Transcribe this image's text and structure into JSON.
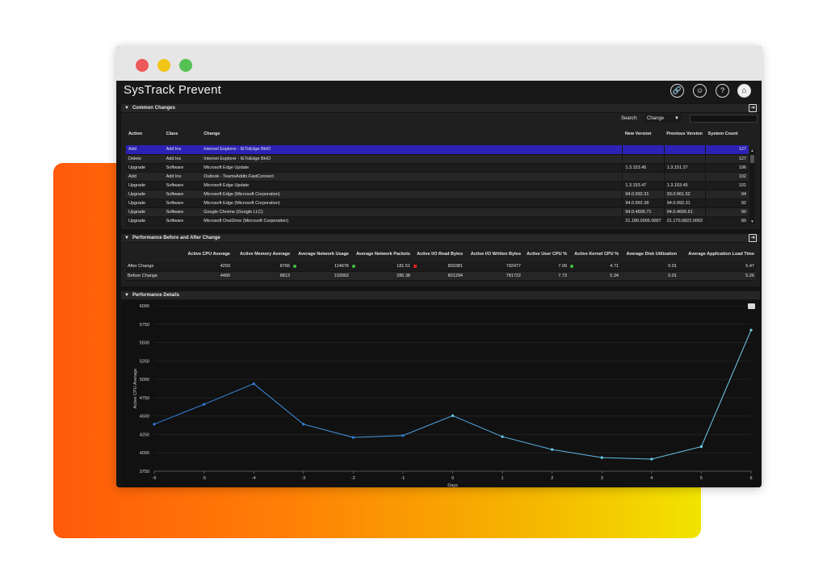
{
  "window": {
    "controls": [
      "close",
      "minimize",
      "maximize"
    ]
  },
  "app": {
    "title": "SysTrack Prevent",
    "header_icons": [
      "link-icon",
      "smiley-icon",
      "help-icon",
      "home-icon"
    ]
  },
  "common_changes": {
    "title": "Common Changes",
    "search_label": "Search:",
    "search_field": "Change",
    "search_value": "",
    "columns": [
      "Action",
      "Class",
      "Change",
      "New Version",
      "Previous Version",
      "System Count"
    ],
    "rows": [
      [
        "Add",
        "Add Ins",
        "Internet Explorer - IEToEdge BHO",
        "",
        "",
        "127"
      ],
      [
        "Delete",
        "Add Ins",
        "Internet Explorer - IEToEdge BHO",
        "",
        "",
        "127"
      ],
      [
        "Upgrade",
        "Software",
        "Microsoft Edge Update",
        "1.3.153.45",
        "1.3.151.27",
        "106"
      ],
      [
        "Add",
        "Add Ins",
        "Outlook - TeamsAddin.FastConnect",
        "",
        "",
        "102"
      ],
      [
        "Upgrade",
        "Software",
        "Microsoft Edge Update",
        "1.3.153.47",
        "1.3.153.45",
        "101"
      ],
      [
        "Upgrade",
        "Software",
        "Microsoft Edge (Microsoft Corporation)",
        "94.0.992.31",
        "93.0.961.52",
        "94"
      ],
      [
        "Upgrade",
        "Software",
        "Microsoft Edge (Microsoft Corporation)",
        "94.0.992.38",
        "94.0.992.31",
        "92"
      ],
      [
        "Upgrade",
        "Software",
        "Google Chrome (Google LLC)",
        "94.0.4606.71",
        "94.0.4606.61",
        "90"
      ],
      [
        "Upgrade",
        "Software",
        "Microsoft OneDrive (Microsoft Corporation)",
        "21.180.0905.0007",
        "21.170.0822.0002",
        "89"
      ]
    ],
    "selected_row": 0
  },
  "performance": {
    "title": "Performance Before and After Change",
    "columns": [
      "Active CPU Average",
      "Active Memory Average",
      "Average Network Usage",
      "Average Network Packets",
      "Active I/O Read Bytes",
      "Active I/O Written Bytes",
      "Active User CPU %",
      "Active Kernel CPU %",
      "Average Disk Utilization",
      "Average Application Load Time"
    ],
    "rows": [
      {
        "label": "After Change",
        "values": [
          "4293",
          "8766",
          "114676",
          "181.51",
          "893381",
          "792477",
          "7.09",
          "4.71",
          "0.01",
          "5.47"
        ],
        "indicators": [
          "",
          "",
          "green",
          "green",
          "red",
          "",
          "",
          "green",
          "",
          ""
        ]
      },
      {
        "label": "Before Change",
        "values": [
          "4480",
          "8813",
          "193902",
          "286.38",
          "801294",
          "781722",
          "7.73",
          "5.34",
          "0.01",
          "5.26"
        ],
        "indicators": [
          "",
          "",
          "",
          "",
          "",
          "",
          "",
          "",
          "",
          ""
        ]
      }
    ]
  },
  "details": {
    "title": "Performance Details",
    "menu_icon": "menu-icon"
  },
  "chart_data": {
    "type": "line",
    "xlabel": "Days",
    "ylabel": "Active CPU Average",
    "x": [
      -6,
      -5,
      -4,
      -3,
      -2,
      -1,
      0,
      1,
      2,
      3,
      4,
      5,
      6
    ],
    "series": [
      {
        "values": [
          4390,
          4660,
          4940,
          4390,
          4210,
          4235,
          4505,
          4220,
          4045,
          3935,
          3915,
          4085,
          5670
        ]
      }
    ],
    "xlim": [
      -6,
      6
    ],
    "ylim": [
      3750,
      6000
    ],
    "yticks": [
      3750,
      4000,
      4250,
      4500,
      4750,
      5000,
      5250,
      5500,
      5750,
      6000
    ],
    "grid": true,
    "colors": {
      "start": "#2f7fe0",
      "end": "#6fd0ea"
    }
  }
}
